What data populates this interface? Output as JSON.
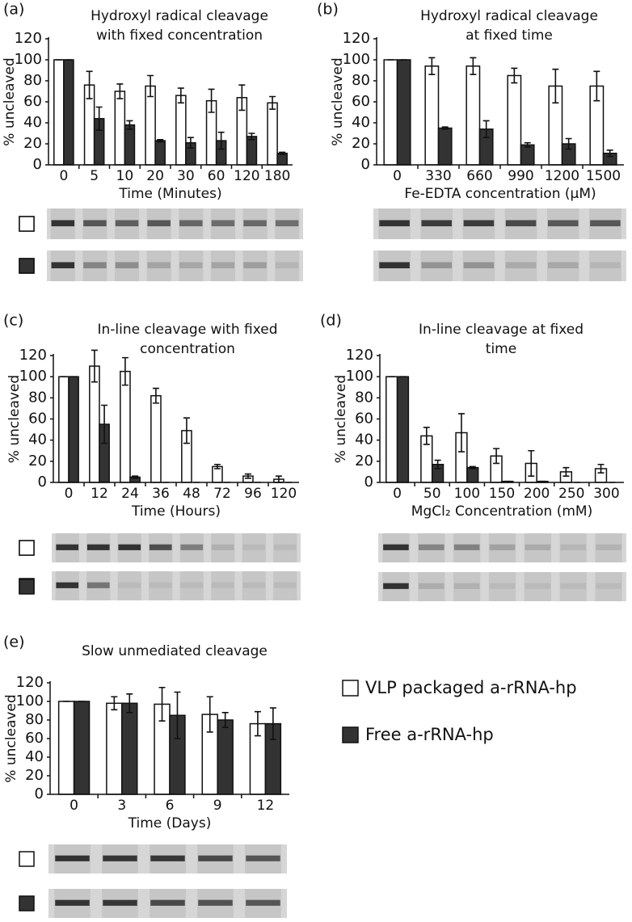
{
  "chart_data": [
    {
      "type": "bar",
      "label": "(a)",
      "title": [
        "Hydroxyl radical cleavage",
        "with fixed concentration"
      ],
      "xlabel": "Time (Minutes)",
      "ylabel": "% uncleaved",
      "categories": [
        "0",
        "5",
        "10",
        "20",
        "30",
        "60",
        "120",
        "180"
      ],
      "series": [
        {
          "name": "VLP packaged a-rRNA-hp",
          "color": "#ffffff",
          "values": [
            100,
            76,
            70,
            75,
            66,
            61,
            64,
            59
          ],
          "errors": [
            0,
            13,
            7,
            10,
            7,
            11,
            12,
            6
          ]
        },
        {
          "name": "Free a-rRNA-hp",
          "color": "#333333",
          "values": [
            100,
            44,
            38,
            23,
            21,
            23,
            27,
            11
          ],
          "errors": [
            0,
            11,
            4,
            1,
            5,
            8,
            3,
            1
          ]
        }
      ],
      "ylim": [
        0,
        120
      ],
      "yticks": [
        0,
        20,
        40,
        60,
        80,
        100,
        120
      ]
    },
    {
      "type": "bar",
      "label": "(b)",
      "title": [
        "Hydroxyl radical cleavage",
        "at fixed time"
      ],
      "xlabel": "Fe-EDTA concentration (μM)",
      "ylabel": "% uncleaved",
      "categories": [
        "0",
        "330",
        "660",
        "990",
        "1200",
        "1500"
      ],
      "series": [
        {
          "name": "VLP packaged a-rRNA-hp",
          "color": "#ffffff",
          "values": [
            100,
            94,
            94,
            85,
            75,
            75
          ],
          "errors": [
            0,
            8,
            8,
            7,
            16,
            14
          ]
        },
        {
          "name": "Free a-rRNA-hp",
          "color": "#333333",
          "values": [
            100,
            35,
            34,
            19,
            20,
            11
          ],
          "errors": [
            0,
            1,
            8,
            2,
            5,
            3
          ]
        }
      ],
      "ylim": [
        0,
        120
      ],
      "yticks": [
        0,
        20,
        40,
        60,
        80,
        100,
        120
      ]
    },
    {
      "type": "bar",
      "label": "(c)",
      "title": [
        "In-line cleavage with fixed",
        "concentration"
      ],
      "xlabel": "Time (Hours)",
      "ylabel": "% uncleaved",
      "categories": [
        "0",
        "12",
        "24",
        "36",
        "48",
        "72",
        "96",
        "120"
      ],
      "series": [
        {
          "name": "VLP packaged a-rRNA-hp",
          "color": "#ffffff",
          "values": [
            100,
            110,
            105,
            82,
            49,
            15,
            6,
            3
          ],
          "errors": [
            0,
            15,
            13,
            7,
            12,
            2,
            2,
            3
          ]
        },
        {
          "name": "Free a-rRNA-hp",
          "color": "#333333",
          "values": [
            100,
            55,
            5,
            0,
            0,
            0,
            0,
            0
          ],
          "errors": [
            0,
            18,
            1,
            0,
            0,
            0,
            0,
            0
          ]
        }
      ],
      "ylim": [
        0,
        120
      ],
      "yticks": [
        0,
        20,
        40,
        60,
        80,
        100,
        120
      ]
    },
    {
      "type": "bar",
      "label": "(d)",
      "title": [
        "In-line cleavage at fixed",
        "time"
      ],
      "xlabel": "MgCl₂ Concentration (mM)",
      "ylabel": "% uncleaved",
      "categories": [
        "0",
        "50",
        "100",
        "150",
        "200",
        "250",
        "300"
      ],
      "series": [
        {
          "name": "VLP packaged a-rRNA-hp",
          "color": "#ffffff",
          "values": [
            100,
            44,
            47,
            25,
            18,
            10,
            13
          ],
          "errors": [
            0,
            8,
            18,
            7,
            12,
            4,
            4
          ]
        },
        {
          "name": "Free a-rRNA-hp",
          "color": "#333333",
          "values": [
            100,
            17,
            14,
            1,
            1,
            0,
            0
          ],
          "errors": [
            0,
            4,
            1,
            0,
            0,
            0,
            0
          ]
        }
      ],
      "ylim": [
        0,
        120
      ],
      "yticks": [
        0,
        20,
        40,
        60,
        80,
        100,
        120
      ]
    },
    {
      "type": "bar",
      "label": "(e)",
      "title": [
        "Slow unmediated cleavage"
      ],
      "xlabel": "Time (Days)",
      "ylabel": "% uncleaved",
      "categories": [
        "0",
        "3",
        "6",
        "9",
        "12"
      ],
      "series": [
        {
          "name": "VLP packaged a-rRNA-hp",
          "color": "#ffffff",
          "values": [
            100,
            98,
            97,
            86,
            76
          ],
          "errors": [
            0,
            7,
            18,
            19,
            13
          ]
        },
        {
          "name": "Free a-rRNA-hp",
          "color": "#333333",
          "values": [
            100,
            98,
            85,
            80,
            76
          ],
          "errors": [
            0,
            10,
            25,
            8,
            17
          ]
        }
      ],
      "ylim": [
        0,
        120
      ],
      "yticks": [
        0,
        20,
        40,
        60,
        80,
        100,
        120
      ]
    }
  ]
}
